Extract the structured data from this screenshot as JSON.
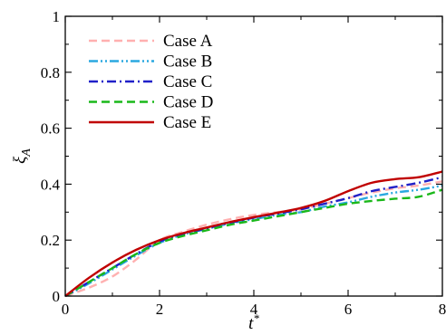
{
  "chart_data": {
    "type": "line",
    "xlabel": "t*",
    "ylabel": "ξ_A",
    "xlim": [
      0,
      8
    ],
    "ylim": [
      0,
      1
    ],
    "x_ticks": [
      "0",
      "2",
      "4",
      "6",
      "8"
    ],
    "y_ticks": [
      "0",
      "0.2",
      "0.4",
      "0.6",
      "0.8",
      "1"
    ],
    "grid": false,
    "legend_position": "top-left",
    "series": [
      {
        "name": "Case A",
        "color": "#ffb0b0",
        "dash": "dashed",
        "x": [
          0,
          0.5,
          1,
          1.5,
          2,
          2.5,
          3,
          3.5,
          4,
          4.5,
          5,
          5.5,
          6,
          6.5,
          7,
          7.5,
          8
        ],
        "y": [
          0,
          0.03,
          0.07,
          0.13,
          0.2,
          0.23,
          0.255,
          0.275,
          0.29,
          0.3,
          0.31,
          0.33,
          0.35,
          0.37,
          0.385,
          0.395,
          0.41
        ]
      },
      {
        "name": "Case B",
        "color": "#2aa8e0",
        "dash": "dash-dot-dot",
        "x": [
          0,
          0.5,
          1,
          1.5,
          2,
          2.5,
          3,
          3.5,
          4,
          4.5,
          5,
          5.5,
          6,
          6.5,
          7,
          7.5,
          8
        ],
        "y": [
          0,
          0.045,
          0.095,
          0.145,
          0.19,
          0.22,
          0.24,
          0.26,
          0.275,
          0.29,
          0.3,
          0.32,
          0.335,
          0.355,
          0.37,
          0.38,
          0.395
        ]
      },
      {
        "name": "Case C",
        "color": "#2020c8",
        "dash": "dash-dot",
        "x": [
          0,
          0.5,
          1,
          1.5,
          2,
          2.5,
          3,
          3.5,
          4,
          4.5,
          5,
          5.5,
          6,
          6.5,
          7,
          7.5,
          8
        ],
        "y": [
          0,
          0.05,
          0.1,
          0.15,
          0.195,
          0.222,
          0.242,
          0.262,
          0.28,
          0.295,
          0.31,
          0.33,
          0.35,
          0.375,
          0.39,
          0.405,
          0.425
        ]
      },
      {
        "name": "Case D",
        "color": "#1ab81a",
        "dash": "dashed",
        "x": [
          0,
          0.5,
          1,
          1.5,
          2,
          2.5,
          3,
          3.5,
          4,
          4.5,
          5,
          5.5,
          6,
          6.5,
          7,
          7.5,
          8
        ],
        "y": [
          0,
          0.05,
          0.1,
          0.15,
          0.19,
          0.215,
          0.235,
          0.255,
          0.27,
          0.285,
          0.3,
          0.315,
          0.33,
          0.34,
          0.348,
          0.355,
          0.38
        ]
      },
      {
        "name": "Case E",
        "color": "#c00000",
        "dash": "solid",
        "x": [
          0,
          0.5,
          1,
          1.5,
          2,
          2.5,
          3,
          3.5,
          4,
          4.5,
          5,
          5.5,
          6,
          6.5,
          7,
          7.5,
          8
        ],
        "y": [
          0,
          0.065,
          0.12,
          0.165,
          0.2,
          0.225,
          0.245,
          0.265,
          0.282,
          0.298,
          0.315,
          0.34,
          0.375,
          0.405,
          0.418,
          0.425,
          0.445
        ]
      }
    ]
  }
}
